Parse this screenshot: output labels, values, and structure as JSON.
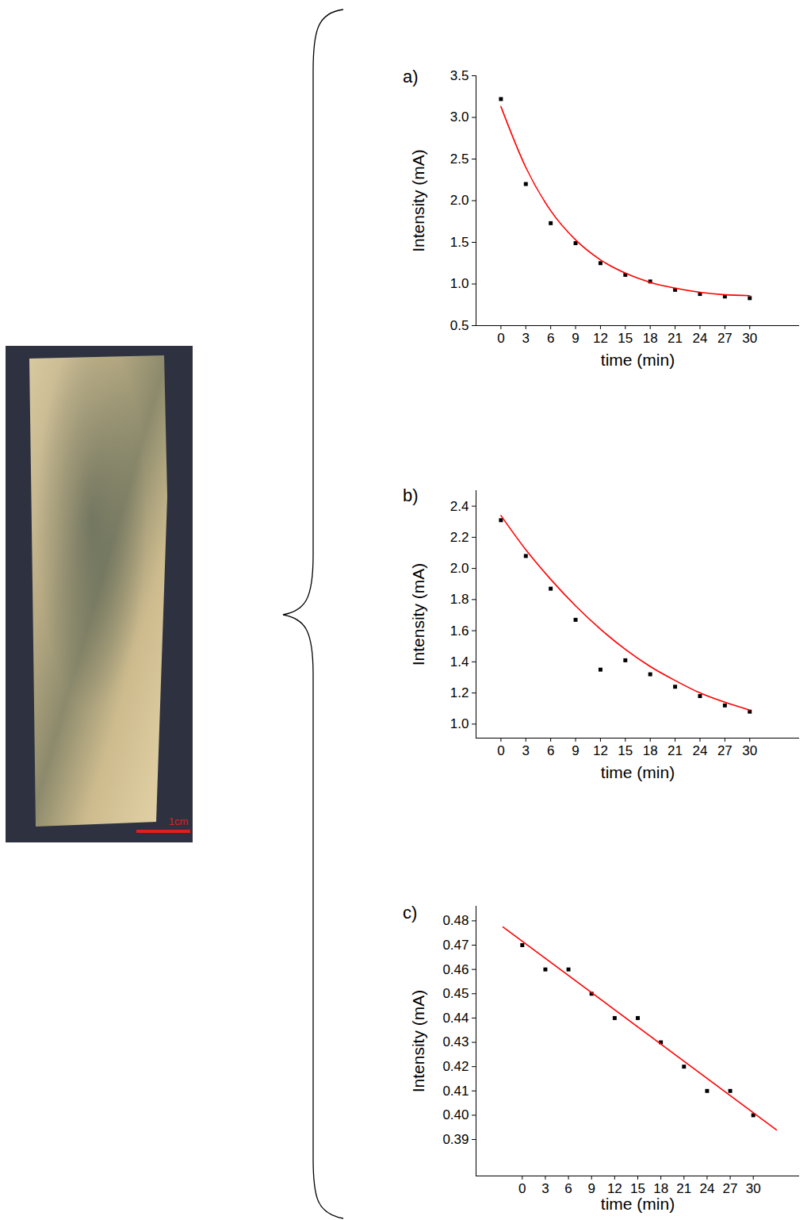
{
  "photo": {
    "scale_bar_label": "1cm"
  },
  "chart_data": [
    {
      "type": "scatter",
      "title": "a)",
      "x_label": "time (min)",
      "y_label": "Intensity (mA)",
      "xlim": [
        -3,
        36
      ],
      "xticks": [
        0,
        3,
        6,
        9,
        12,
        15,
        18,
        21,
        24,
        27,
        30
      ],
      "ylim": [
        0.5,
        3.5
      ],
      "yticks": [
        0.5,
        {
          "value": 1.0,
          "label": "1.0"
        },
        1.5,
        {
          "value": 2.0,
          "label": "2.0"
        },
        2.5,
        {
          "value": 3.0,
          "label": "3.0"
        },
        3.5
      ],
      "series": [
        {
          "type": "scatter",
          "color": "#000000",
          "marker": "square",
          "x": [
            0,
            3,
            6,
            9,
            12,
            15,
            18,
            21,
            24,
            27,
            30
          ],
          "values": [
            3.22,
            2.2,
            1.73,
            1.49,
            1.25,
            1.11,
            1.03,
            0.93,
            0.88,
            0.85,
            0.83
          ]
        },
        {
          "type": "line",
          "color": "#ff0000",
          "line_style": "solid",
          "x": [
            0,
            3,
            6,
            9,
            12,
            15,
            18,
            21,
            24,
            27,
            30
          ],
          "values": [
            3.13,
            2.4,
            1.88,
            1.53,
            1.29,
            1.13,
            1.02,
            0.95,
            0.9,
            0.87,
            0.86
          ]
        }
      ]
    },
    {
      "type": "scatter",
      "title": "b)",
      "x_label": "time (min)",
      "y_label": "Intensity (mA)",
      "xlim": [
        -3,
        36
      ],
      "xticks": [
        0,
        3,
        6,
        9,
        12,
        15,
        18,
        21,
        24,
        27,
        30
      ],
      "ylim": [
        0.91,
        2.5
      ],
      "yticks": [
        {
          "value": 1.0,
          "label": "1.0"
        },
        1.2,
        1.4,
        1.6,
        1.8,
        {
          "value": 2.0,
          "label": "2.0"
        },
        2.2,
        2.4
      ],
      "series": [
        {
          "type": "scatter",
          "color": "#000000",
          "marker": "square",
          "x": [
            0,
            3,
            6,
            9,
            12,
            15,
            18,
            21,
            24,
            27,
            30
          ],
          "values": [
            2.31,
            2.08,
            1.87,
            1.67,
            1.35,
            1.41,
            1.32,
            1.24,
            1.18,
            1.12,
            1.08
          ]
        },
        {
          "type": "line",
          "color": "#ff0000",
          "line_style": "solid",
          "x": [
            0,
            3,
            6,
            9,
            12,
            15,
            18,
            21,
            24,
            27,
            30
          ],
          "values": [
            2.34,
            2.12,
            1.93,
            1.76,
            1.61,
            1.48,
            1.37,
            1.28,
            1.2,
            1.14,
            1.09
          ]
        }
      ]
    },
    {
      "type": "scatter",
      "title": "c)",
      "x_label": "time (min)",
      "y_label": "Intensity (mA)",
      "xlim": [
        -6,
        36
      ],
      "xticks": [
        0,
        3,
        6,
        9,
        12,
        15,
        18,
        21,
        24,
        27,
        30
      ],
      "ylim": [
        0.375,
        0.486
      ],
      "yticks": [
        0.39,
        {
          "value": 0.4,
          "label": "0.40"
        },
        0.41,
        0.42,
        0.43,
        0.44,
        0.45,
        0.46,
        0.47,
        0.48
      ],
      "series": [
        {
          "type": "scatter",
          "color": "#000000",
          "marker": "square",
          "x": [
            0,
            3,
            6,
            9,
            12,
            15,
            18,
            21,
            24,
            27,
            30
          ],
          "values": [
            0.47,
            0.46,
            0.46,
            0.45,
            0.44,
            0.44,
            0.43,
            0.42,
            0.41,
            0.41,
            0.4
          ]
        },
        {
          "type": "line",
          "color": "#ff0000",
          "line_style": "solid",
          "x": [
            -2.5,
            33
          ],
          "values": [
            0.4775,
            0.394
          ]
        }
      ]
    }
  ]
}
